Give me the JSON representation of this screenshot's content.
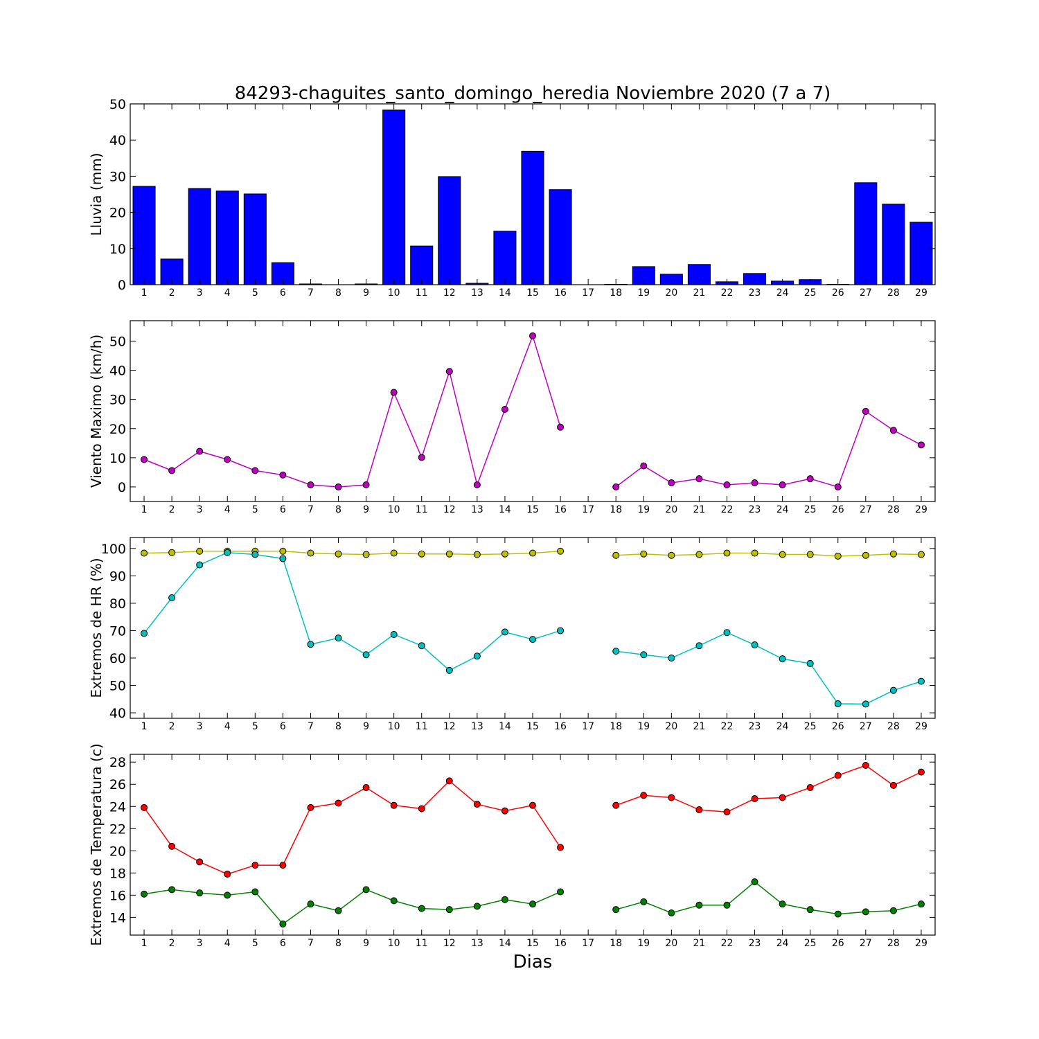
{
  "chart_data": [
    {
      "type": "bar",
      "title": "84293-chaguites_santo_domingo_heredia Noviembre 2020  (7 a 7)",
      "xlabel": "",
      "ylabel": "Lluvia (mm)",
      "ylim": [
        0,
        50
      ],
      "yticks": [
        0,
        10,
        20,
        30,
        40,
        50
      ],
      "xlim": [
        0.5,
        29.5
      ],
      "x": [
        1,
        2,
        3,
        4,
        5,
        6,
        7,
        8,
        9,
        10,
        11,
        12,
        13,
        14,
        15,
        16,
        17,
        18,
        19,
        20,
        21,
        22,
        23,
        24,
        25,
        26,
        27,
        28,
        29
      ],
      "series": [
        {
          "values": [
            27.2,
            7.1,
            26.6,
            25.9,
            25.1,
            6.1,
            0.2,
            0,
            0.2,
            48.3,
            10.7,
            29.9,
            0.4,
            14.8,
            36.9,
            26.3,
            0,
            0.1,
            5.0,
            2.9,
            5.6,
            0.8,
            3.1,
            1.0,
            1.4,
            0.1,
            28.2,
            22.3,
            17.3
          ],
          "color": "#0000ff"
        }
      ]
    },
    {
      "type": "line",
      "ylabel": "Viento Maximo (km/h)",
      "ylim": [
        -5,
        57
      ],
      "yticks": [
        0,
        10,
        20,
        30,
        40,
        50
      ],
      "xlim": [
        0.5,
        29.5
      ],
      "x": [
        1,
        2,
        3,
        4,
        5,
        6,
        7,
        8,
        9,
        10,
        11,
        12,
        13,
        14,
        15,
        16,
        17,
        18,
        19,
        20,
        21,
        22,
        23,
        24,
        25,
        26,
        27,
        28,
        29
      ],
      "series": [
        {
          "values": [
            9.4,
            5.6,
            12.2,
            9.4,
            5.6,
            4.1,
            0.7,
            0,
            0.7,
            32.4,
            10.1,
            39.6,
            0.7,
            26.6,
            51.8,
            20.5,
            null,
            0,
            7.2,
            1.4,
            2.8,
            0.7,
            1.4,
            0.7,
            2.8,
            0,
            25.9,
            19.4,
            14.4
          ],
          "color": "#bf00bf"
        }
      ]
    },
    {
      "type": "line",
      "ylabel": "Extremos de HR (%)",
      "ylim": [
        38,
        104
      ],
      "yticks": [
        40,
        50,
        60,
        70,
        80,
        90,
        100
      ],
      "xlim": [
        0.5,
        29.5
      ],
      "x": [
        1,
        2,
        3,
        4,
        5,
        6,
        7,
        8,
        9,
        10,
        11,
        12,
        13,
        14,
        15,
        16,
        17,
        18,
        19,
        20,
        21,
        22,
        23,
        24,
        25,
        26,
        27,
        28,
        29
      ],
      "series": [
        {
          "values": [
            98.3,
            98.5,
            99.0,
            99.0,
            99.0,
            99.0,
            98.3,
            98.0,
            97.8,
            98.3,
            98.0,
            98.0,
            97.8,
            98.0,
            98.3,
            99.0,
            null,
            97.5,
            98.0,
            97.5,
            97.8,
            98.3,
            98.3,
            97.8,
            97.8,
            97.2,
            97.5,
            98.0,
            97.8
          ],
          "color": "#bfbf00"
        },
        {
          "values": [
            69.0,
            82.0,
            94.0,
            98.5,
            97.8,
            96.3,
            65.0,
            67.3,
            61.2,
            68.6,
            64.5,
            55.5,
            60.7,
            69.5,
            66.8,
            70.0,
            null,
            62.5,
            61.2,
            60.0,
            64.5,
            69.3,
            64.8,
            59.7,
            58.0,
            43.3,
            43.2,
            48.2,
            51.5
          ],
          "color": "#00bfbf"
        }
      ]
    },
    {
      "type": "line",
      "xlabel": "Dias",
      "ylabel": "Extremos de Temperatura (c)",
      "ylim": [
        12.4,
        28.7
      ],
      "yticks": [
        14,
        16,
        18,
        20,
        22,
        24,
        26,
        28
      ],
      "xlim": [
        0.5,
        29.5
      ],
      "x": [
        1,
        2,
        3,
        4,
        5,
        6,
        7,
        8,
        9,
        10,
        11,
        12,
        13,
        14,
        15,
        16,
        17,
        18,
        19,
        20,
        21,
        22,
        23,
        24,
        25,
        26,
        27,
        28,
        29
      ],
      "series": [
        {
          "values": [
            23.9,
            20.4,
            19.0,
            17.9,
            18.7,
            18.7,
            23.9,
            24.3,
            25.7,
            24.1,
            23.8,
            26.3,
            24.2,
            23.6,
            24.1,
            20.3,
            null,
            24.1,
            25.0,
            24.8,
            23.7,
            23.5,
            24.7,
            24.8,
            25.7,
            26.8,
            27.7,
            25.9,
            27.1
          ],
          "color": "#ff0000"
        },
        {
          "values": [
            16.1,
            16.5,
            16.2,
            16.0,
            16.3,
            13.4,
            15.2,
            14.6,
            16.5,
            15.5,
            14.8,
            14.7,
            15.0,
            15.6,
            15.2,
            16.3,
            null,
            14.7,
            15.4,
            14.4,
            15.1,
            15.1,
            17.2,
            15.2,
            14.7,
            14.3,
            14.5,
            14.6,
            15.2
          ],
          "color": "#008000"
        }
      ]
    }
  ]
}
